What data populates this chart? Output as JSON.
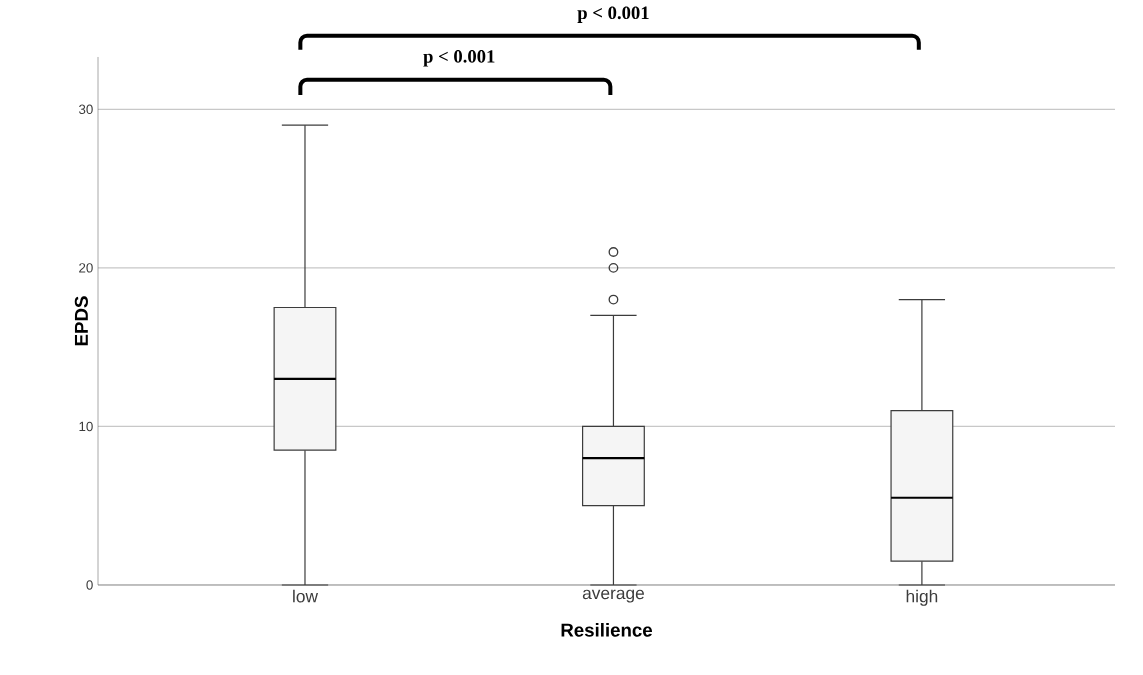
{
  "chart_data": {
    "type": "box",
    "xlabel": "Resilience",
    "ylabel": "EPDS",
    "categories": [
      "low",
      "average",
      "high"
    ],
    "series": [
      {
        "color": "#f5f5f5",
        "boxes": [
          {
            "low": 0,
            "q1": 8.5,
            "median": 13,
            "q3": 17.5,
            "high": 29
          },
          {
            "low": 0,
            "q1": 5,
            "median": 8,
            "q3": 10,
            "high": 17,
            "outliers": [
              18,
              20,
              21
            ]
          },
          {
            "low": 0,
            "q1": 1.5,
            "median": 5.5,
            "q3": 11,
            "high": 18
          }
        ]
      }
    ],
    "ylim": [
      0,
      33.3
    ],
    "yticks": [
      0,
      10,
      20,
      30
    ],
    "grid": "y",
    "marker": "circle",
    "annotations": [
      "p < 0.001",
      "p < 0.001"
    ]
  }
}
